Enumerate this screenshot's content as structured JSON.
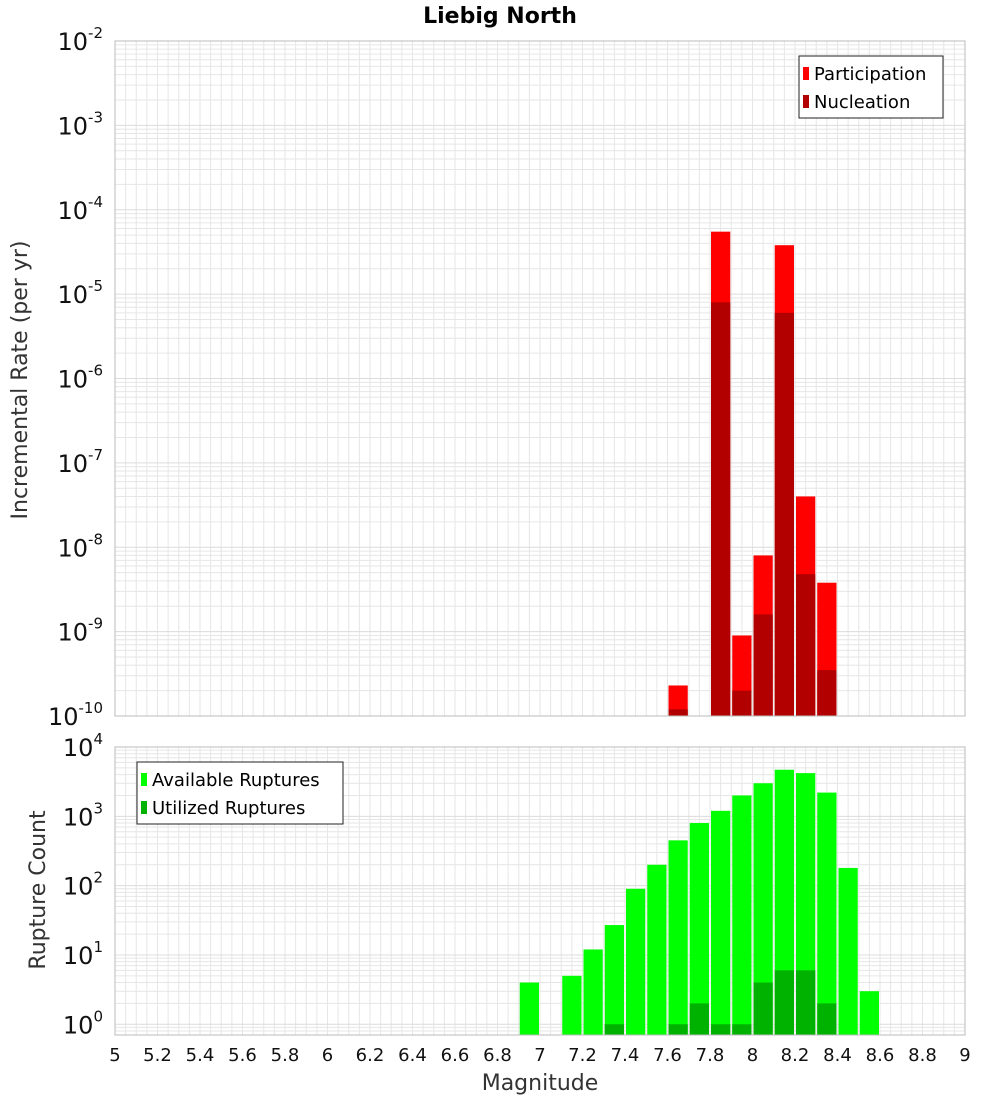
{
  "title": "Liebig North",
  "xlabel": "Magnitude",
  "colors": {
    "participation": "#ff0000",
    "nucleation": "#b20000",
    "available": "#00ff00",
    "utilized": "#00b200",
    "grid": "#e6e6e6",
    "frame": "#bbbbbb"
  },
  "chart_data": [
    {
      "type": "bar",
      "ylabel": "Incremental Rate (per yr)",
      "yscale": "log",
      "ylim": [
        1e-10,
        0.01
      ],
      "xlim": [
        5,
        9
      ],
      "legend_position": "top-right",
      "y_ticks": [
        "10",
        "10",
        "10",
        "10",
        "10",
        "10",
        "10",
        "10",
        "10"
      ],
      "y_tick_exponents": [
        "-10",
        "-9",
        "-8",
        "-7",
        "-6",
        "-5",
        "-4",
        "-3",
        "-2"
      ],
      "series": [
        {
          "name": "Participation",
          "color": "#ff0000",
          "x": [
            7.65,
            7.85,
            7.95,
            8.05,
            8.15,
            8.25,
            8.35
          ],
          "values": [
            2.3e-10,
            5.5e-05,
            9e-10,
            8e-09,
            3.8e-05,
            4e-08,
            3.8e-09
          ]
        },
        {
          "name": "Nucleation",
          "color": "#b20000",
          "x": [
            7.65,
            7.85,
            7.95,
            8.05,
            8.15,
            8.25,
            8.35
          ],
          "values": [
            1.2e-10,
            8e-06,
            2e-10,
            1.6e-09,
            6e-06,
            4.8e-09,
            3.5e-10
          ]
        }
      ]
    },
    {
      "type": "bar",
      "ylabel": "Rupture Count",
      "yscale": "log",
      "ylim": [
        0.7,
        10000
      ],
      "xlim": [
        5,
        9
      ],
      "legend_position": "top-left",
      "y_ticks": [
        "10",
        "10",
        "10",
        "10",
        "10"
      ],
      "y_tick_exponents": [
        "0",
        "1",
        "2",
        "3",
        "4"
      ],
      "series": [
        {
          "name": "Available Ruptures",
          "color": "#00ff00",
          "x": [
            6.95,
            7.15,
            7.25,
            7.35,
            7.45,
            7.55,
            7.65,
            7.75,
            7.85,
            7.95,
            8.05,
            8.15,
            8.25,
            8.35,
            8.45,
            8.55
          ],
          "values": [
            4,
            5,
            12,
            27,
            90,
            200,
            450,
            800,
            1200,
            2000,
            3000,
            4700,
            4200,
            2200,
            180,
            3
          ]
        },
        {
          "name": "Utilized Ruptures",
          "color": "#00b200",
          "x": [
            7.35,
            7.65,
            7.75,
            7.85,
            7.95,
            8.05,
            8.15,
            8.25,
            8.35
          ],
          "values": [
            1,
            1,
            2,
            1,
            1,
            4,
            6,
            6,
            2
          ]
        }
      ]
    }
  ],
  "x_ticks": [
    "5",
    "5.2",
    "5.4",
    "5.6",
    "5.8",
    "6",
    "6.2",
    "6.4",
    "6.6",
    "6.8",
    "7",
    "7.2",
    "7.4",
    "7.6",
    "7.8",
    "8",
    "8.2",
    "8.4",
    "8.6",
    "8.8",
    "9"
  ]
}
